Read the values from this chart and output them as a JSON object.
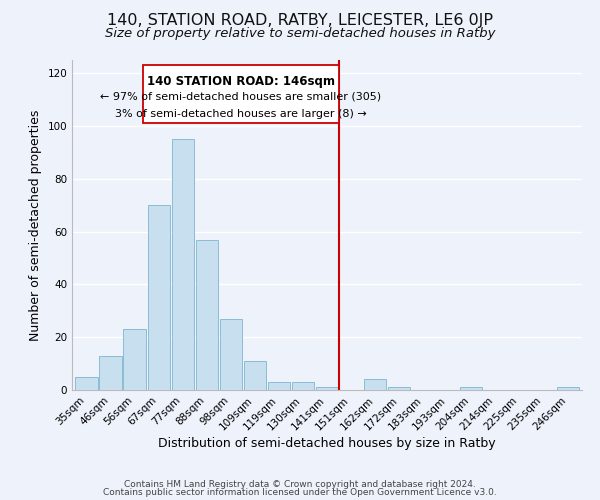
{
  "title": "140, STATION ROAD, RATBY, LEICESTER, LE6 0JP",
  "subtitle": "Size of property relative to semi-detached houses in Ratby",
  "xlabel": "Distribution of semi-detached houses by size in Ratby",
  "ylabel": "Number of semi-detached properties",
  "bar_labels": [
    "35sqm",
    "46sqm",
    "56sqm",
    "67sqm",
    "77sqm",
    "88sqm",
    "98sqm",
    "109sqm",
    "119sqm",
    "130sqm",
    "141sqm",
    "151sqm",
    "162sqm",
    "172sqm",
    "183sqm",
    "193sqm",
    "204sqm",
    "214sqm",
    "225sqm",
    "235sqm",
    "246sqm"
  ],
  "bar_values": [
    5,
    13,
    23,
    70,
    95,
    57,
    27,
    11,
    3,
    3,
    1,
    0,
    4,
    1,
    0,
    0,
    1,
    0,
    0,
    0,
    1
  ],
  "bar_color": "#c8dff0",
  "bar_edge_color": "#8bbcd4",
  "ylim": [
    0,
    125
  ],
  "yticks": [
    0,
    20,
    40,
    60,
    80,
    100,
    120
  ],
  "vline_color": "#cc0000",
  "annotation_title": "140 STATION ROAD: 146sqm",
  "annotation_line1": "← 97% of semi-detached houses are smaller (305)",
  "annotation_line2": "3% of semi-detached houses are larger (8) →",
  "footer_line1": "Contains HM Land Registry data © Crown copyright and database right 2024.",
  "footer_line2": "Contains public sector information licensed under the Open Government Licence v3.0.",
  "background_color": "#eef2fa",
  "grid_color": "#ffffff",
  "title_fontsize": 11.5,
  "subtitle_fontsize": 9.5,
  "axis_label_fontsize": 9,
  "tick_fontsize": 7.5,
  "footer_fontsize": 6.5
}
